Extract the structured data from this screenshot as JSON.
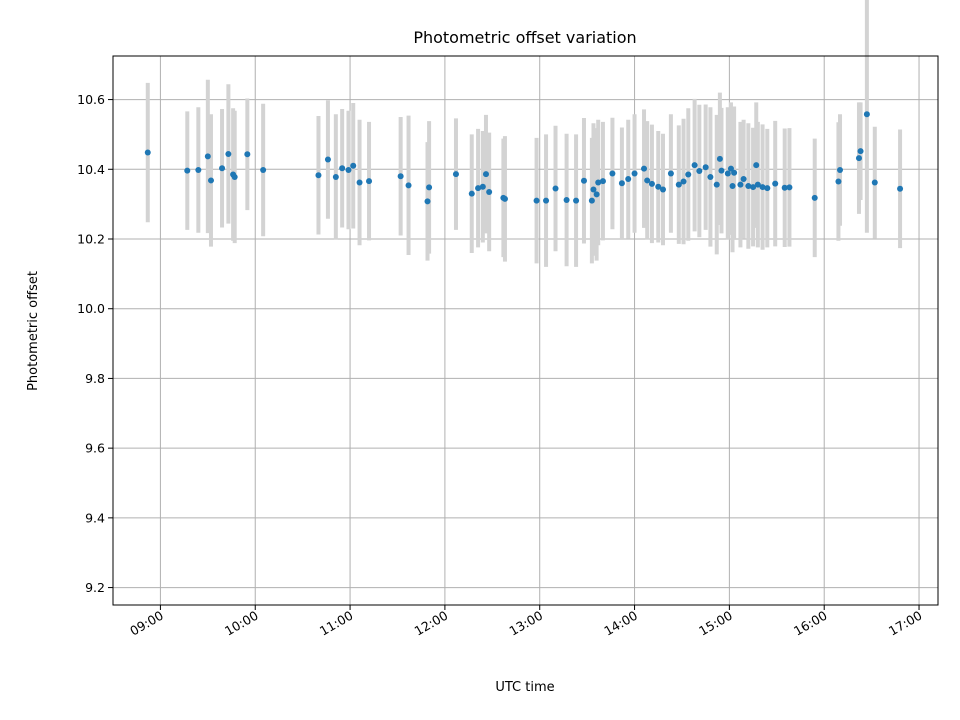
{
  "chart_data": {
    "type": "scatter",
    "title": "Photometric offset variation",
    "xlabel": "UTC time",
    "ylabel": "Photometric offset",
    "x_ticks": [
      "09:00",
      "10:00",
      "11:00",
      "12:00",
      "13:00",
      "14:00",
      "15:00",
      "16:00",
      "17:00"
    ],
    "y_ticks": [
      "9.2",
      "9.4",
      "9.6",
      "9.8",
      "10.0",
      "10.2",
      "10.4",
      "10.6"
    ],
    "xlim": [
      "08:30",
      "17:12"
    ],
    "ylim": [
      9.15,
      10.725
    ],
    "grid": true,
    "colors": {
      "point": "#1f77b4",
      "errorbar": "#d3d3d3",
      "grid": "#b0b0b0"
    },
    "series": [
      {
        "x": [
          "08:52",
          "09:17",
          "09:24",
          "09:30",
          "09:32",
          "09:39",
          "09:43",
          "09:46",
          "09:47",
          "09:55",
          "10:05",
          "10:40",
          "10:46",
          "10:51",
          "10:55",
          "10:59",
          "11:02",
          "11:06",
          "11:12",
          "11:32",
          "11:37",
          "11:49",
          "11:50",
          "12:07",
          "12:17",
          "12:21",
          "12:24",
          "12:26",
          "12:28",
          "12:37",
          "12:38",
          "12:58",
          "13:04",
          "13:10",
          "13:17",
          "13:23",
          "13:28",
          "13:33",
          "13:34",
          "13:36",
          "13:37",
          "13:40",
          "13:46",
          "13:52",
          "13:56",
          "14:00",
          "14:06",
          "14:08",
          "14:11",
          "14:15",
          "14:18",
          "14:23",
          "14:28",
          "14:31",
          "14:34",
          "14:38",
          "14:41",
          "14:45",
          "14:48",
          "14:52",
          "14:54",
          "14:55",
          "14:59",
          "15:01",
          "15:02",
          "15:03",
          "15:07",
          "15:09",
          "15:12",
          "15:15",
          "15:17",
          "15:18",
          "15:21",
          "15:24",
          "15:29",
          "15:35",
          "15:38",
          "15:54",
          "16:09",
          "16:10",
          "16:22",
          "16:23",
          "16:27",
          "16:32",
          "16:48"
        ],
        "y": [
          10.448,
          10.396,
          10.398,
          10.437,
          10.368,
          10.403,
          10.444,
          10.385,
          10.378,
          10.443,
          10.398,
          10.383,
          10.428,
          10.378,
          10.403,
          10.398,
          10.41,
          10.362,
          10.366,
          10.38,
          10.354,
          10.308,
          10.348,
          10.386,
          10.33,
          10.346,
          10.35,
          10.386,
          10.335,
          10.318,
          10.315,
          10.31,
          10.31,
          10.345,
          10.312,
          10.31,
          10.367,
          10.31,
          10.342,
          10.328,
          10.362,
          10.366,
          10.388,
          10.36,
          10.372,
          10.388,
          10.402,
          10.368,
          10.358,
          10.35,
          10.342,
          10.388,
          10.356,
          10.365,
          10.385,
          10.412,
          10.395,
          10.406,
          10.378,
          10.356,
          10.43,
          10.396,
          10.388,
          10.402,
          10.352,
          10.39,
          10.356,
          10.372,
          10.352,
          10.349,
          10.412,
          10.356,
          10.349,
          10.346,
          10.359,
          10.347,
          10.348,
          10.318,
          10.365,
          10.398,
          10.432,
          10.452,
          10.558,
          10.362,
          10.344
        ],
        "yerr": [
          0.2,
          0.17,
          0.18,
          0.22,
          0.19,
          0.17,
          0.2,
          0.19,
          0.19,
          0.16,
          0.19,
          0.17,
          0.17,
          0.18,
          0.17,
          0.17,
          0.18,
          0.18,
          0.17,
          0.17,
          0.2,
          0.17,
          0.19,
          0.16,
          0.17,
          0.17,
          0.16,
          0.17,
          0.17,
          0.17,
          0.18,
          0.18,
          0.19,
          0.18,
          0.19,
          0.19,
          0.18,
          0.18,
          0.19,
          0.19,
          0.18,
          0.17,
          0.16,
          0.16,
          0.17,
          0.17,
          0.17,
          0.17,
          0.17,
          0.16,
          0.16,
          0.17,
          0.17,
          0.18,
          0.19,
          0.19,
          0.19,
          0.18,
          0.2,
          0.2,
          0.19,
          0.18,
          0.19,
          0.19,
          0.19,
          0.19,
          0.18,
          0.17,
          0.18,
          0.17,
          0.18,
          0.18,
          0.18,
          0.17,
          0.18,
          0.17,
          0.17,
          0.17,
          0.17,
          0.16,
          0.16,
          0.14,
          0.34,
          0.16,
          0.17
        ]
      }
    ]
  }
}
